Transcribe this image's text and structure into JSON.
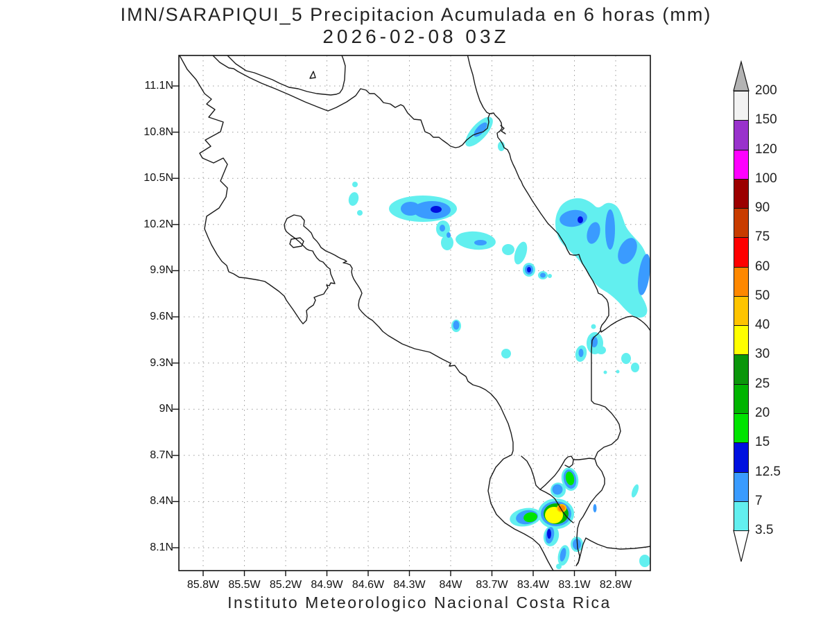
{
  "title": {
    "line1": "IMN/SARAPIQUI_5 Precipitacion Acumulada en 6 horas (mm)",
    "line2": "2026-02-08 03Z"
  },
  "footer": "Instituto Meteorologico Nacional Costa Rica",
  "axes": {
    "lat_labels": [
      "11.1N",
      "10.8N",
      "10.5N",
      "10.2N",
      "9.9N",
      "9.6N",
      "9.3N",
      "9N",
      "8.7N",
      "8.4N",
      "8.1N"
    ],
    "lon_labels": [
      "85.8W",
      "85.5W",
      "85.2W",
      "84.9W",
      "84.6W",
      "84.3W",
      "84W",
      "83.7W",
      "83.4W",
      "83.1W",
      "82.8W"
    ]
  },
  "colorbar": {
    "labels": [
      "200",
      "150",
      "120",
      "100",
      "90",
      "75",
      "60",
      "50",
      "40",
      "30",
      "25",
      "20",
      "15",
      "12.5",
      "7",
      "3.5"
    ],
    "colors": [
      "#f2f2f2",
      "#9932cc",
      "#ff00ff",
      "#9b0000",
      "#c83c00",
      "#ff0000",
      "#ff8800",
      "#ffc400",
      "#ffff00",
      "#0a960a",
      "#00b400",
      "#00e400",
      "#0010e0",
      "#3a9bff",
      "#62efef"
    ],
    "arrow_top_color": "#b3b3b3",
    "arrow_bottom_color": "#ffffff"
  },
  "palette": {
    "cyan": "#62efef",
    "blue": "#3a9bff",
    "navy": "#0010e0",
    "green_bright": "#00e400",
    "green": "#00b400",
    "yellow": "#ffff00",
    "gold": "#ffc400",
    "orange": "#ff8800",
    "coast": "#1a1a1a",
    "grid": "#9a9a9a",
    "frame": "#111111"
  },
  "chart_data": {
    "type": "heatmap",
    "title": "IMN/SARAPIQUI_5 Precipitacion Acumulada en 6 horas (mm)",
    "subtitle": "2026-02-08 03Z",
    "units": "mm",
    "region": "Costa Rica",
    "x_ticks_lon_w": [
      85.8,
      85.5,
      85.2,
      84.9,
      84.6,
      84.3,
      84.0,
      83.7,
      83.4,
      83.1,
      82.8
    ],
    "y_ticks_lat_n": [
      11.1,
      10.8,
      10.5,
      10.2,
      9.9,
      9.6,
      9.3,
      9.0,
      8.7,
      8.4,
      8.1
    ],
    "grid": true,
    "legend_position": "right",
    "levels_mm": [
      3.5,
      7,
      12.5,
      15,
      20,
      25,
      30,
      40,
      50,
      60,
      75,
      90,
      100,
      120,
      150,
      200
    ],
    "features": [
      {
        "lat_n": 10.8,
        "lon_w": 83.8,
        "desc": "elongated NE-SW streak on northern Caribbean coast",
        "max_bin_mm": "7-12.5"
      },
      {
        "lat_n": 10.3,
        "lon_w": 84.2,
        "desc": "large cell over northern plains with dark-blue core",
        "max_bin_mm": "12.5-15"
      },
      {
        "lat_n": 10.15,
        "lon_w": 83.8,
        "desc": "trailing band SE of main cell",
        "max_bin_mm": "7-12.5"
      },
      {
        "lat_n": 9.9,
        "lon_w": 83.4,
        "desc": "small core with rings",
        "max_bin_mm": "12.5-15"
      },
      {
        "lat_n": 10.0,
        "lon_w": 82.9,
        "desc": "broad area along Caribbean coast extending off east edge",
        "max_bin_mm": "12.5-15"
      },
      {
        "lat_n": 9.55,
        "lon_w": 84.0,
        "desc": "isolated dot",
        "max_bin_mm": "7-12.5"
      },
      {
        "lat_n": 9.4,
        "lon_w": 83.05,
        "desc": "cluster of small cells near Caribbean slope",
        "max_bin_mm": "7-12.5"
      },
      {
        "lat_n": 8.55,
        "lon_w": 83.15,
        "desc": "small green cell north of Golfo Dulce",
        "max_bin_mm": "15-20"
      },
      {
        "lat_n": 8.32,
        "lon_w": 83.2,
        "desc": "intense cell at Golfo Dulce / Osa with yellow-orange core",
        "max_bin_mm": "50-60"
      },
      {
        "lat_n": 8.3,
        "lon_w": 83.4,
        "desc": "green cell west of main southern cell",
        "max_bin_mm": "15-20"
      },
      {
        "lat_n": 8.1,
        "lon_w": 83.25,
        "desc": "trailing band with dark-blue dash toward south edge",
        "max_bin_mm": "12.5-15"
      }
    ]
  }
}
